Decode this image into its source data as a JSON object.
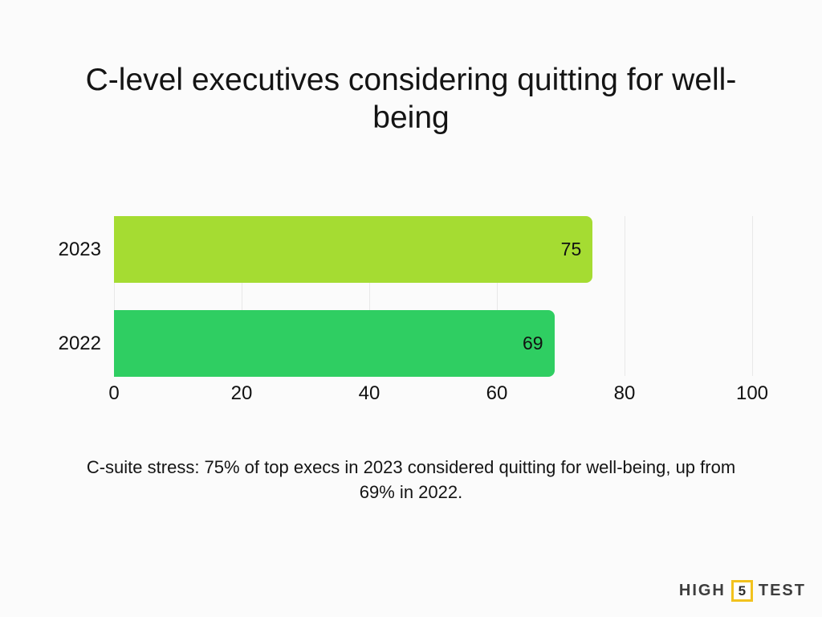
{
  "title": {
    "text": "C-level executives considering quitting for well-being",
    "line1": "C-level executives considering quitting for well-",
    "line2": "being"
  },
  "caption": {
    "text": "C-suite stress: 75% of top execs in 2023 considered quitting for well-being, up from 69% in 2022.",
    "line1": "C-suite stress: 75% of top execs in 2023 considered quitting for well-being, up from",
    "line2": "69% in 2022."
  },
  "logo": {
    "part1": "HIGH",
    "number": "5",
    "part2": "TEST",
    "accent_color": "#F2C21E",
    "text_color": "#3D3D3D"
  },
  "colors": {
    "background": "#FBFBFB",
    "text": "#141414",
    "gridline": "#E8E8E8",
    "value_label": "#111111"
  },
  "chart_data": {
    "type": "bar",
    "orientation": "horizontal",
    "title": "C-level executives considering quitting for well-being",
    "categories": [
      "2023",
      "2022"
    ],
    "values": [
      75,
      69
    ],
    "value_labels": [
      "75",
      "69"
    ],
    "bar_colors": [
      "#A5DC32",
      "#2FCE62"
    ],
    "xlabel": "",
    "ylabel": "",
    "xlim": [
      0,
      100
    ],
    "xticks": [
      0,
      20,
      40,
      60,
      80,
      100
    ],
    "grid": "vertical",
    "legend": "none",
    "value_label_position": "inside-end"
  }
}
